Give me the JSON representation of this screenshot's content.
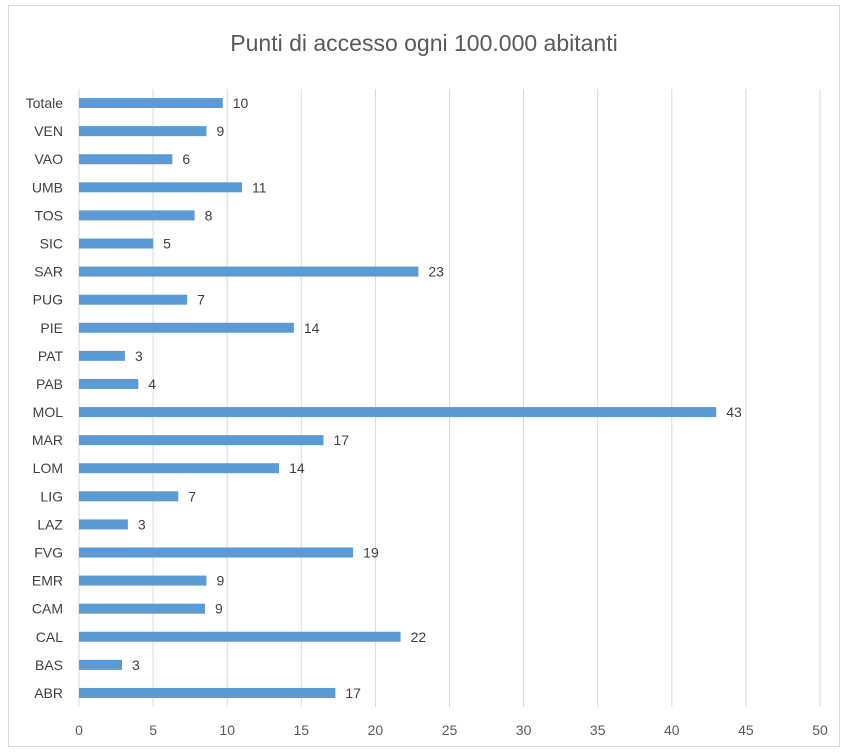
{
  "chart_data": {
    "type": "bar",
    "orientation": "horizontal",
    "title": "Punti di accesso ogni 100.000 abitanti",
    "categories": [
      "Totale",
      "VEN",
      "VAO",
      "UMB",
      "TOS",
      "SIC",
      "SAR",
      "PUG",
      "PIE",
      "PAT",
      "PAB",
      "MOL",
      "MAR",
      "LOM",
      "LIG",
      "LAZ",
      "FVG",
      "EMR",
      "CAM",
      "CAL",
      "BAS",
      "ABR"
    ],
    "values": [
      9.7,
      8.6,
      6.3,
      11.0,
      7.8,
      5.0,
      22.9,
      7.3,
      14.5,
      3.1,
      4.0,
      43.0,
      16.5,
      13.5,
      6.7,
      3.3,
      18.5,
      8.6,
      8.5,
      21.7,
      2.9,
      17.3
    ],
    "data_labels": [
      "10",
      "9",
      "6",
      "11",
      "8",
      "5",
      "23",
      "7",
      "14",
      "3",
      "4",
      "43",
      "17",
      "14",
      "7",
      "3",
      "19",
      "9",
      "9",
      "22",
      "3",
      "17"
    ],
    "xlim": [
      0,
      50
    ],
    "x_ticks": [
      0,
      5,
      10,
      15,
      20,
      25,
      30,
      35,
      40,
      45,
      50
    ],
    "grid": true,
    "legend": "none",
    "bar_color": "#5b9bd5",
    "grid_color": "#d9d9d9"
  }
}
